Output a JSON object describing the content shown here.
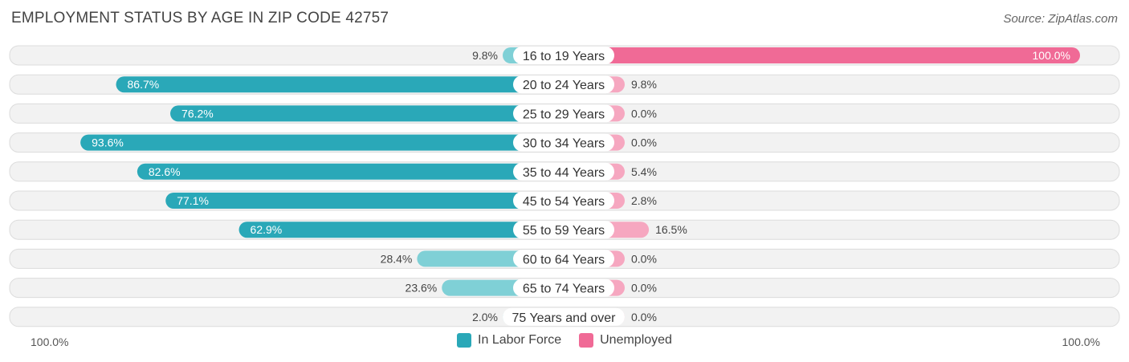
{
  "title": "EMPLOYMENT STATUS BY AGE IN ZIP CODE 42757",
  "source": "Source: ZipAtlas.com",
  "axis": {
    "left_label": "100.0%",
    "right_label": "100.0%"
  },
  "legend": [
    {
      "label": "In Labor Force",
      "color": "#2aa8b8"
    },
    {
      "label": "Unemployed",
      "color": "#f06a96"
    }
  ],
  "colors": {
    "labor_strong": "#2aa8b8",
    "labor_light": "#7fd0d6",
    "unemp_strong": "#f06a96",
    "unemp_light": "#f6a7c0",
    "row_bg": "#f2f2f2",
    "row_border": "#dcdcdc"
  },
  "chart_data": {
    "type": "bar",
    "orientation": "horizontal-diverging",
    "categories": [
      "16 to 19 Years",
      "20 to 24 Years",
      "25 to 29 Years",
      "30 to 34 Years",
      "35 to 44 Years",
      "45 to 54 Years",
      "55 to 59 Years",
      "60 to 64 Years",
      "65 to 74 Years",
      "75 Years and over"
    ],
    "series": [
      {
        "name": "In Labor Force",
        "values": [
          9.8,
          86.7,
          76.2,
          93.6,
          82.6,
          77.1,
          62.9,
          28.4,
          23.6,
          2.0
        ],
        "labels": [
          "9.8%",
          "86.7%",
          "76.2%",
          "93.6%",
          "82.6%",
          "77.1%",
          "62.9%",
          "28.4%",
          "23.6%",
          "2.0%"
        ]
      },
      {
        "name": "Unemployed",
        "values": [
          100.0,
          9.8,
          0.0,
          0.0,
          5.4,
          2.8,
          16.5,
          0.0,
          0.0,
          0.0
        ],
        "labels": [
          "100.0%",
          "9.8%",
          "0.0%",
          "0.0%",
          "5.4%",
          "2.8%",
          "16.5%",
          "0.0%",
          "0.0%",
          "0.0%"
        ]
      }
    ],
    "xlim": [
      0,
      100
    ]
  }
}
